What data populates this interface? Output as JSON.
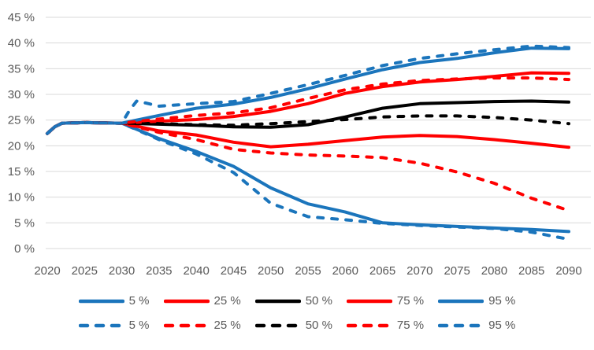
{
  "chart_data": {
    "type": "line",
    "title": "",
    "xlabel": "",
    "ylabel": "",
    "grid": true,
    "grid_color": "#D9D9D9",
    "text_color": "#595959",
    "background": "#FFFFFF",
    "x": {
      "range": [
        2020,
        2090
      ],
      "tick_step": 5,
      "tick_labels": [
        "2020",
        "2025",
        "2030",
        "2035",
        "2040",
        "2045",
        "2050",
        "2055",
        "2060",
        "2065",
        "2070",
        "2075",
        "2080",
        "2085",
        "2090"
      ]
    },
    "y": {
      "range": [
        0,
        45
      ],
      "tick_step": 5,
      "tick_suffix": " %",
      "tick_values": [
        45,
        40,
        35,
        30,
        25,
        20,
        15,
        10,
        5,
        0
      ]
    },
    "palette": {
      "blue": "#1B75BC",
      "red": "#FF0000",
      "black": "#000000"
    },
    "series": [
      {
        "id": "solid-5",
        "label": "5 %",
        "style": "solid",
        "color": "#1B75BC",
        "points": [
          [
            2020,
            22.4
          ],
          [
            2021,
            23.7
          ],
          [
            2022,
            24.4
          ],
          [
            2025,
            24.5
          ],
          [
            2030,
            24.4
          ],
          [
            2035,
            21.4
          ],
          [
            2040,
            18.9
          ],
          [
            2045,
            16.0
          ],
          [
            2050,
            11.8
          ],
          [
            2055,
            8.7
          ],
          [
            2060,
            7.1
          ],
          [
            2065,
            5.0
          ],
          [
            2070,
            4.6
          ],
          [
            2075,
            4.3
          ],
          [
            2080,
            4.0
          ],
          [
            2085,
            3.7
          ],
          [
            2090,
            3.3
          ]
        ]
      },
      {
        "id": "solid-25",
        "label": "25 %",
        "style": "solid",
        "color": "#FF0000",
        "points": [
          [
            2020,
            22.4
          ],
          [
            2021,
            23.7
          ],
          [
            2022,
            24.4
          ],
          [
            2025,
            24.5
          ],
          [
            2030,
            24.4
          ],
          [
            2035,
            22.9
          ],
          [
            2040,
            22.1
          ],
          [
            2045,
            20.7
          ],
          [
            2050,
            19.8
          ],
          [
            2055,
            20.3
          ],
          [
            2060,
            21.0
          ],
          [
            2065,
            21.7
          ],
          [
            2070,
            22.0
          ],
          [
            2075,
            21.8
          ],
          [
            2080,
            21.2
          ],
          [
            2085,
            20.5
          ],
          [
            2090,
            19.7
          ]
        ]
      },
      {
        "id": "solid-50",
        "label": "50 %",
        "style": "solid",
        "color": "#000000",
        "points": [
          [
            2020,
            22.4
          ],
          [
            2021,
            23.7
          ],
          [
            2022,
            24.4
          ],
          [
            2025,
            24.5
          ],
          [
            2030,
            24.4
          ],
          [
            2035,
            24.2
          ],
          [
            2040,
            24.0
          ],
          [
            2045,
            23.7
          ],
          [
            2050,
            23.6
          ],
          [
            2055,
            24.1
          ],
          [
            2060,
            25.6
          ],
          [
            2065,
            27.3
          ],
          [
            2070,
            28.2
          ],
          [
            2075,
            28.4
          ],
          [
            2080,
            28.6
          ],
          [
            2085,
            28.7
          ],
          [
            2090,
            28.5
          ]
        ]
      },
      {
        "id": "solid-75",
        "label": "75 %",
        "style": "solid",
        "color": "#FF0000",
        "points": [
          [
            2020,
            22.4
          ],
          [
            2021,
            23.7
          ],
          [
            2022,
            24.4
          ],
          [
            2025,
            24.5
          ],
          [
            2030,
            24.4
          ],
          [
            2035,
            24.8
          ],
          [
            2040,
            25.1
          ],
          [
            2045,
            25.7
          ],
          [
            2050,
            26.7
          ],
          [
            2055,
            28.2
          ],
          [
            2060,
            30.2
          ],
          [
            2065,
            31.5
          ],
          [
            2070,
            32.4
          ],
          [
            2075,
            32.9
          ],
          [
            2080,
            33.5
          ],
          [
            2085,
            34.2
          ],
          [
            2090,
            34.1
          ]
        ]
      },
      {
        "id": "solid-95",
        "label": "95 %",
        "style": "solid",
        "color": "#1B75BC",
        "points": [
          [
            2020,
            22.4
          ],
          [
            2021,
            23.7
          ],
          [
            2022,
            24.4
          ],
          [
            2025,
            24.5
          ],
          [
            2030,
            24.4
          ],
          [
            2035,
            25.9
          ],
          [
            2040,
            27.3
          ],
          [
            2045,
            28.1
          ],
          [
            2050,
            29.4
          ],
          [
            2055,
            31.1
          ],
          [
            2060,
            33.0
          ],
          [
            2065,
            34.8
          ],
          [
            2070,
            36.2
          ],
          [
            2075,
            37.0
          ],
          [
            2080,
            38.1
          ],
          [
            2085,
            39.0
          ],
          [
            2090,
            38.9
          ]
        ]
      },
      {
        "id": "dashed-5",
        "label": "5 %",
        "style": "dashed",
        "color": "#1B75BC",
        "points": [
          [
            2020,
            22.4
          ],
          [
            2021,
            23.7
          ],
          [
            2022,
            24.4
          ],
          [
            2025,
            24.5
          ],
          [
            2030,
            24.4
          ],
          [
            2035,
            21.2
          ],
          [
            2040,
            18.4
          ],
          [
            2045,
            14.8
          ],
          [
            2050,
            8.8
          ],
          [
            2055,
            6.2
          ],
          [
            2060,
            5.6
          ],
          [
            2065,
            4.9
          ],
          [
            2070,
            4.5
          ],
          [
            2075,
            4.2
          ],
          [
            2080,
            3.9
          ],
          [
            2085,
            3.2
          ],
          [
            2090,
            1.8
          ]
        ]
      },
      {
        "id": "dashed-25",
        "label": "25 %",
        "style": "dashed",
        "color": "#FF0000",
        "points": [
          [
            2020,
            22.4
          ],
          [
            2021,
            23.7
          ],
          [
            2022,
            24.4
          ],
          [
            2025,
            24.5
          ],
          [
            2030,
            24.4
          ],
          [
            2035,
            22.6
          ],
          [
            2040,
            21.2
          ],
          [
            2045,
            19.3
          ],
          [
            2050,
            18.6
          ],
          [
            2055,
            18.2
          ],
          [
            2060,
            18.0
          ],
          [
            2065,
            17.7
          ],
          [
            2070,
            16.6
          ],
          [
            2075,
            14.9
          ],
          [
            2080,
            12.7
          ],
          [
            2085,
            9.8
          ],
          [
            2090,
            7.4
          ]
        ]
      },
      {
        "id": "dashed-50",
        "label": "50 %",
        "style": "dashed",
        "color": "#000000",
        "points": [
          [
            2020,
            22.4
          ],
          [
            2021,
            23.7
          ],
          [
            2022,
            24.4
          ],
          [
            2025,
            24.5
          ],
          [
            2030,
            24.4
          ],
          [
            2035,
            24.3
          ],
          [
            2040,
            24.1
          ],
          [
            2045,
            24.0
          ],
          [
            2050,
            24.3
          ],
          [
            2055,
            24.7
          ],
          [
            2060,
            25.1
          ],
          [
            2065,
            25.6
          ],
          [
            2070,
            25.8
          ],
          [
            2075,
            25.8
          ],
          [
            2080,
            25.5
          ],
          [
            2085,
            25.0
          ],
          [
            2090,
            24.3
          ]
        ]
      },
      {
        "id": "dashed-75",
        "label": "75 %",
        "style": "dashed",
        "color": "#FF0000",
        "points": [
          [
            2020,
            22.4
          ],
          [
            2021,
            23.7
          ],
          [
            2022,
            24.4
          ],
          [
            2025,
            24.5
          ],
          [
            2030,
            24.4
          ],
          [
            2035,
            25.2
          ],
          [
            2040,
            25.9
          ],
          [
            2045,
            26.4
          ],
          [
            2050,
            27.4
          ],
          [
            2055,
            29.2
          ],
          [
            2060,
            30.9
          ],
          [
            2065,
            32.0
          ],
          [
            2070,
            32.7
          ],
          [
            2075,
            33.0
          ],
          [
            2080,
            33.2
          ],
          [
            2085,
            33.2
          ],
          [
            2090,
            32.9
          ]
        ]
      },
      {
        "id": "dashed-95",
        "label": "95 %",
        "style": "dashed",
        "color": "#1B75BC",
        "points": [
          [
            2020,
            22.4
          ],
          [
            2021,
            23.7
          ],
          [
            2022,
            24.4
          ],
          [
            2025,
            24.5
          ],
          [
            2030,
            24.4
          ],
          [
            2031,
            26.8
          ],
          [
            2032,
            28.7
          ],
          [
            2033,
            28.4
          ],
          [
            2035,
            27.7
          ],
          [
            2040,
            28.2
          ],
          [
            2045,
            28.6
          ],
          [
            2050,
            30.2
          ],
          [
            2055,
            31.9
          ],
          [
            2060,
            33.7
          ],
          [
            2065,
            35.6
          ],
          [
            2070,
            37.0
          ],
          [
            2075,
            37.9
          ],
          [
            2080,
            38.7
          ],
          [
            2085,
            39.4
          ],
          [
            2090,
            39.1
          ]
        ]
      }
    ],
    "legend": {
      "position": "bottom",
      "rows": [
        {
          "style": "solid",
          "entries": [
            "5 %",
            "25 %",
            "50 %",
            "75 %",
            "95 %"
          ]
        },
        {
          "style": "dashed",
          "entries": [
            "5 %",
            "25 %",
            "50 %",
            "75 %",
            "95 %"
          ]
        }
      ]
    }
  }
}
